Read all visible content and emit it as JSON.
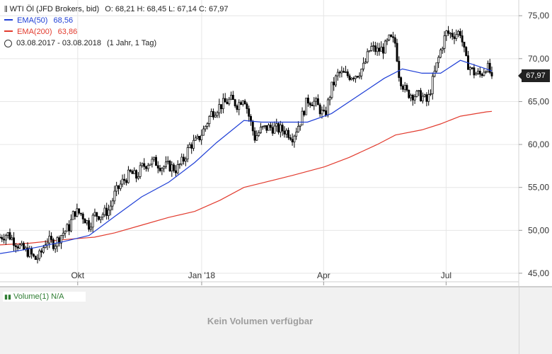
{
  "header": {
    "instrument": "WTI Öl (JFD Brokers, bid)",
    "ohlc": "O: 68,21  H: 68,45  L: 67,14  C: 67,97",
    "ema50_label": "EMA(50)",
    "ema50_value": "68,56",
    "ema200_label": "EMA(200)",
    "ema200_value": "63,86",
    "date_range": "03.08.2017 - 03.08.2018",
    "period": "(1 Jahr, 1 Tag)"
  },
  "last_price_tag": "67,97",
  "volume_pane": {
    "label": "Volume(1)",
    "value": "N/A",
    "empty_message": "Kein Volumen verfügbar"
  },
  "colors": {
    "candles": "#000000",
    "ema50": "#1f3fd6",
    "ema200": "#e23b2e",
    "grid": "#e6e6e6",
    "volume_label": "#2e7d32"
  },
  "chart_data": {
    "type": "candlestick",
    "ylim": [
      44.5,
      76.5
    ],
    "y_ticks": [
      "45,00",
      "50,00",
      "55,00",
      "60,00",
      "65,00",
      "70,00",
      "75,00"
    ],
    "x_ticks": [
      {
        "label": "Okt",
        "x": 2017.747
      },
      {
        "label": "Jan '18",
        "x": 2017.999
      },
      {
        "label": "Apr",
        "x": 2018.247
      },
      {
        "label": "Jul",
        "x": 2018.496
      }
    ],
    "x_range": [
      2017.589,
      2018.589
    ],
    "close": [
      [
        2017.589,
        49.2
      ],
      [
        2017.604,
        49.6
      ],
      [
        2017.619,
        48.7
      ],
      [
        2017.634,
        47.8
      ],
      [
        2017.649,
        47.4
      ],
      [
        2017.66,
        46.6
      ],
      [
        2017.671,
        47.1
      ],
      [
        2017.683,
        48.9
      ],
      [
        2017.7,
        48.4
      ],
      [
        2017.715,
        49.6
      ],
      [
        2017.73,
        50.4
      ],
      [
        2017.74,
        52.2
      ],
      [
        2017.755,
        51.9
      ],
      [
        2017.77,
        50.6
      ],
      [
        2017.781,
        51.8
      ],
      [
        2017.795,
        51.8
      ],
      [
        2017.811,
        52.4
      ],
      [
        2017.822,
        54.2
      ],
      [
        2017.836,
        55.5
      ],
      [
        2017.855,
        56.7
      ],
      [
        2017.866,
        56.2
      ],
      [
        2017.877,
        57.3
      ],
      [
        2017.89,
        57.9
      ],
      [
        2017.904,
        58.0
      ],
      [
        2017.918,
        57.4
      ],
      [
        2017.932,
        57.5
      ],
      [
        2017.948,
        57.1
      ],
      [
        2017.962,
        58.2
      ],
      [
        2017.975,
        59.9
      ],
      [
        2017.99,
        60.4
      ],
      [
        2018.003,
        61.7
      ],
      [
        2018.018,
        63.6
      ],
      [
        2018.036,
        64.5
      ],
      [
        2018.058,
        65.2
      ],
      [
        2018.072,
        64.6
      ],
      [
        2018.085,
        65.7
      ],
      [
        2018.096,
        63.1
      ],
      [
        2018.107,
        60.8
      ],
      [
        2018.121,
        61.8
      ],
      [
        2018.138,
        62.0
      ],
      [
        2018.154,
        61.8
      ],
      [
        2018.17,
        61.6
      ],
      [
        2018.184,
        60.9
      ],
      [
        2018.2,
        62.8
      ],
      [
        2018.214,
        65.2
      ],
      [
        2018.23,
        64.9
      ],
      [
        2018.249,
        63.2
      ],
      [
        2018.263,
        66.6
      ],
      [
        2018.277,
        68.3
      ],
      [
        2018.299,
        68.0
      ],
      [
        2018.315,
        68.2
      ],
      [
        2018.329,
        69.1
      ],
      [
        2018.342,
        71.3
      ],
      [
        2018.356,
        70.9
      ],
      [
        2018.37,
        71.2
      ],
      [
        2018.381,
        72.3
      ],
      [
        2018.393,
        71.8
      ],
      [
        2018.401,
        67.9
      ],
      [
        2018.415,
        66.0
      ],
      [
        2018.43,
        65.8
      ],
      [
        2018.447,
        65.6
      ],
      [
        2018.458,
        64.9
      ],
      [
        2018.472,
        68.2
      ],
      [
        2018.485,
        71.0
      ],
      [
        2018.496,
        73.0
      ],
      [
        2018.51,
        72.8
      ],
      [
        2018.525,
        73.1
      ],
      [
        2018.536,
        69.8
      ],
      [
        2018.551,
        68.4
      ],
      [
        2018.566,
        68.1
      ],
      [
        2018.578,
        69.2
      ],
      [
        2018.589,
        67.97
      ]
    ],
    "ema50": [
      [
        2017.589,
        47.3
      ],
      [
        2017.634,
        47.7
      ],
      [
        2017.671,
        48.1
      ],
      [
        2017.719,
        48.7
      ],
      [
        2017.77,
        49.4
      ],
      [
        2017.822,
        51.6
      ],
      [
        2017.877,
        53.9
      ],
      [
        2017.932,
        55.6
      ],
      [
        2017.985,
        57.9
      ],
      [
        2018.029,
        60.2
      ],
      [
        2018.085,
        62.8
      ],
      [
        2018.121,
        62.6
      ],
      [
        2018.17,
        62.6
      ],
      [
        2018.214,
        62.6
      ],
      [
        2018.263,
        63.6
      ],
      [
        2018.318,
        65.7
      ],
      [
        2018.37,
        67.7
      ],
      [
        2018.407,
        68.8
      ],
      [
        2018.447,
        68.3
      ],
      [
        2018.485,
        68.3
      ],
      [
        2018.525,
        69.8
      ],
      [
        2018.578,
        68.8
      ],
      [
        2018.589,
        68.56
      ]
    ],
    "ema200": [
      [
        2017.589,
        48.3
      ],
      [
        2017.649,
        48.5
      ],
      [
        2017.715,
        48.9
      ],
      [
        2017.781,
        49.2
      ],
      [
        2017.822,
        49.7
      ],
      [
        2017.877,
        50.6
      ],
      [
        2017.932,
        51.5
      ],
      [
        2017.985,
        52.2
      ],
      [
        2018.036,
        53.5
      ],
      [
        2018.085,
        55.0
      ],
      [
        2018.121,
        55.5
      ],
      [
        2018.184,
        56.4
      ],
      [
        2018.249,
        57.4
      ],
      [
        2018.299,
        58.5
      ],
      [
        2018.356,
        60.0
      ],
      [
        2018.393,
        61.1
      ],
      [
        2018.447,
        61.7
      ],
      [
        2018.485,
        62.4
      ],
      [
        2018.525,
        63.3
      ],
      [
        2018.578,
        63.8
      ],
      [
        2018.589,
        63.86
      ]
    ]
  }
}
